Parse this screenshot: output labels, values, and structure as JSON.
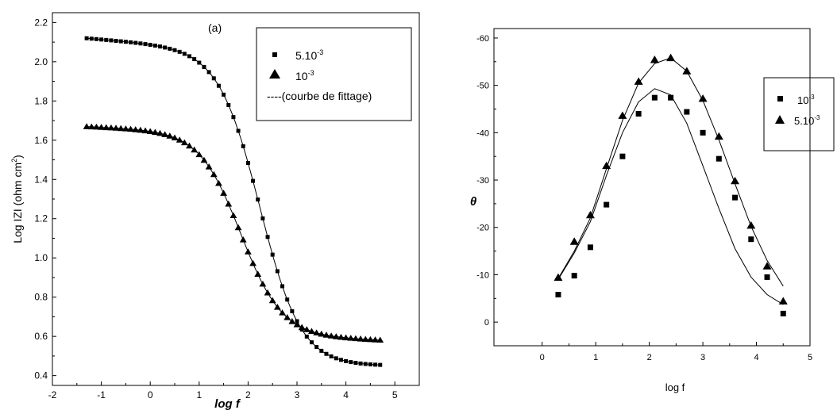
{
  "chart_data": [
    {
      "type": "scatter",
      "panel_label": "(a)",
      "xlabel": "log f",
      "ylabel": "Log IZI (ohm cm2)",
      "xlim": [
        -2,
        5.5
      ],
      "ylim": [
        0.35,
        2.25
      ],
      "x_ticks": [
        -2,
        -1,
        0,
        1,
        2,
        3,
        4,
        5
      ],
      "y_ticks": [
        0.4,
        0.6,
        0.8,
        1.0,
        1.2,
        1.4,
        1.6,
        1.8,
        2.0,
        2.2
      ],
      "x_tick_labels": [
        "-2",
        "-1",
        "0",
        "1",
        "2",
        "3",
        "4",
        "5"
      ],
      "y_tick_labels": [
        "0.4",
        "0.6",
        "0.8",
        "1.0",
        "1.2",
        "1.4",
        "1.6",
        "1.8",
        "2.0",
        "2.2"
      ],
      "legend": {
        "position": "top-right",
        "entries": [
          {
            "label": "5.10-3",
            "marker": "square"
          },
          {
            "label": "10-3",
            "marker": "triangle"
          },
          {
            "label": "----(courbe de fittage)",
            "marker": "none"
          }
        ]
      },
      "series": [
        {
          "name": "5.10-3",
          "marker": "square",
          "fit_line": true,
          "model": {
            "kind": "sigmoid",
            "low": 0.45,
            "high": 2.12,
            "center": 2.25,
            "width": 0.42,
            "slope_low": 0.0,
            "slope_high": -0.02
          },
          "x_range": [
            -1.3,
            4.7
          ],
          "n_points": 61
        },
        {
          "name": "10-3",
          "marker": "triangle",
          "fit_line": true,
          "model": {
            "kind": "sigmoid",
            "low": 0.58,
            "high": 1.67,
            "center": 1.85,
            "width": 0.42,
            "slope_low": -0.01,
            "slope_high": -0.01
          },
          "x_range": [
            -1.3,
            4.7
          ],
          "n_points": 61
        }
      ]
    },
    {
      "type": "scatter",
      "xlabel": "log f",
      "ylabel": "θ",
      "xlim": [
        -0.9,
        5
      ],
      "ylim": [
        5,
        -62
      ],
      "x_ticks": [
        0,
        1,
        2,
        3,
        4,
        5
      ],
      "y_ticks": [
        0,
        -10,
        -20,
        -30,
        -40,
        -50,
        -60
      ],
      "x_tick_labels": [
        "0",
        "1",
        "2",
        "3",
        "4",
        "5"
      ],
      "y_tick_labels": [
        "0",
        "-10",
        "-20",
        "-30",
        "-40",
        "-50",
        "-60"
      ],
      "legend": {
        "position": "top-right",
        "entries": [
          {
            "label": "10-3",
            "marker": "square"
          },
          {
            "label": "5.10-3",
            "marker": "triangle"
          }
        ]
      },
      "series": [
        {
          "name": "10-3",
          "marker": "square",
          "points": [
            [
              0.3,
              -5.8
            ],
            [
              0.6,
              -9.8
            ],
            [
              0.9,
              -15.8
            ],
            [
              1.2,
              -24.8
            ],
            [
              1.5,
              -35
            ],
            [
              1.8,
              -44
            ],
            [
              2.1,
              -47.4
            ],
            [
              2.4,
              -47.4
            ],
            [
              2.7,
              -44.4
            ],
            [
              3.0,
              -40
            ],
            [
              3.3,
              -34.5
            ],
            [
              3.6,
              -26.3
            ],
            [
              3.9,
              -17.5
            ],
            [
              4.2,
              -9.5
            ],
            [
              4.5,
              -1.8
            ]
          ],
          "fit": [
            [
              0.3,
              -9
            ],
            [
              0.6,
              -14.6
            ],
            [
              0.9,
              -21.2
            ],
            [
              1.2,
              -31
            ],
            [
              1.5,
              -40
            ],
            [
              1.8,
              -46.5
            ],
            [
              2.1,
              -49.3
            ],
            [
              2.4,
              -48
            ],
            [
              2.7,
              -42
            ],
            [
              3.0,
              -33
            ],
            [
              3.3,
              -24
            ],
            [
              3.6,
              -15.5
            ],
            [
              3.9,
              -9.5
            ],
            [
              4.2,
              -5.8
            ],
            [
              4.5,
              -3.7
            ]
          ]
        },
        {
          "name": "5.10-3",
          "marker": "triangle",
          "points": [
            [
              0.3,
              -9.4
            ],
            [
              0.6,
              -17
            ],
            [
              0.9,
              -22.6
            ],
            [
              1.2,
              -33
            ],
            [
              1.5,
              -43.6
            ],
            [
              1.8,
              -50.8
            ],
            [
              2.1,
              -55.4
            ],
            [
              2.4,
              -55.8
            ],
            [
              2.7,
              -53
            ],
            [
              3.0,
              -47.2
            ],
            [
              3.3,
              -39.2
            ],
            [
              3.6,
              -29.8
            ],
            [
              3.9,
              -20.4
            ],
            [
              4.2,
              -11.8
            ],
            [
              4.5,
              -4.4
            ]
          ],
          "fit": [
            [
              0.3,
              -9.2
            ],
            [
              0.6,
              -15
            ],
            [
              0.9,
              -22
            ],
            [
              1.2,
              -32.4
            ],
            [
              1.5,
              -42.6
            ],
            [
              1.8,
              -50.5
            ],
            [
              2.1,
              -54.6
            ],
            [
              2.4,
              -55.8
            ],
            [
              2.7,
              -53
            ],
            [
              3.0,
              -46.8
            ],
            [
              3.3,
              -38.5
            ],
            [
              3.6,
              -29.2
            ],
            [
              3.9,
              -20.2
            ],
            [
              4.2,
              -13
            ],
            [
              4.5,
              -7.6
            ]
          ]
        }
      ]
    }
  ]
}
